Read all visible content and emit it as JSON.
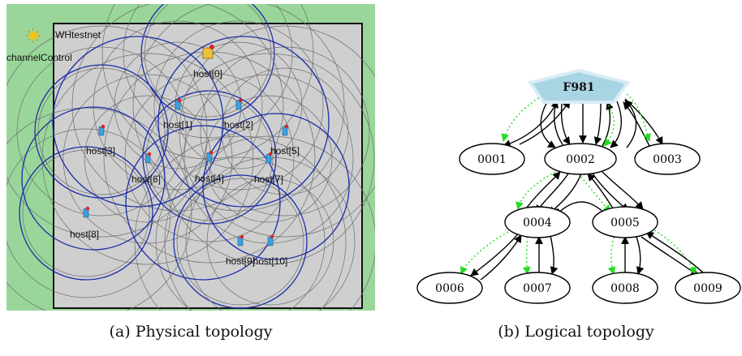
{
  "physical": {
    "title": "WHtestnet",
    "control_label": "channelControl",
    "hosts": [
      "host[0]",
      "host[1]",
      "host[2]",
      "host[3]",
      "host[4]",
      "host[5]",
      "host[6]",
      "host[7]",
      "host[8]",
      "host[9]",
      "host[10]"
    ],
    "caption": "(a) Physical topology",
    "colors": {
      "background": "#9ad69a",
      "arena": "#cfcfcf",
      "range_gray": "#6e6e6e",
      "range_blue": "#1c2ea6"
    }
  },
  "logical": {
    "root": "F981",
    "nodes": [
      "0001",
      "0002",
      "0003",
      "0004",
      "0005",
      "0006",
      "0007",
      "0008",
      "0009"
    ],
    "caption": "(b) Logical topology",
    "colors": {
      "root_fill": "#a9d4e4",
      "dotted_edge": "#22dd22",
      "edge": "#000000"
    }
  }
}
